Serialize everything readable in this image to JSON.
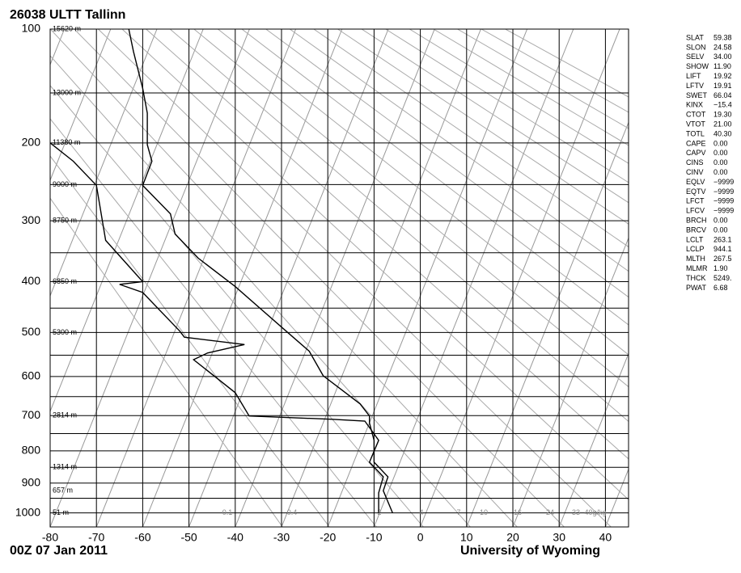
{
  "chart_data": {
    "type": "skewt",
    "title": "26038 ULTT Tallinn",
    "date": "00Z 07 Jan 2011",
    "source": "University of Wyoming",
    "xlim": [
      -80,
      45
    ],
    "xticks": [
      -80,
      -70,
      -60,
      -50,
      -40,
      -30,
      -20,
      -10,
      0,
      10,
      20,
      30,
      40
    ],
    "ylim": [
      100,
      1050
    ],
    "yticks": [
      100,
      200,
      300,
      400,
      500,
      600,
      700,
      800,
      900,
      1000
    ],
    "minor_yticks": [
      150,
      250,
      350,
      450,
      550,
      650,
      750,
      850,
      950
    ],
    "height_labels": [
      {
        "value": 100,
        "label": "15620 m"
      },
      {
        "value": 150,
        "label": "13000 m"
      },
      {
        "value": 200,
        "label": "11380 m"
      },
      {
        "value": 250,
        "label": "9000 m"
      },
      {
        "value": 300,
        "label": "8750 m"
      },
      {
        "value": 400,
        "label": "6850 m"
      },
      {
        "value": 500,
        "label": "5300 m"
      },
      {
        "value": 700,
        "label": "2814 m"
      },
      {
        "value": 850,
        "label": "1314 m"
      },
      {
        "value": 925,
        "label": "657 m"
      },
      {
        "value": 1000,
        "label": "51 m"
      }
    ],
    "mixing_ratio_labels": [
      "0.1",
      "0.4",
      "2",
      "4",
      "7",
      "10",
      "16",
      "24",
      "33",
      "40g/kg"
    ],
    "series": [
      {
        "name": "Temperature",
        "color": "#000000",
        "pressure": [
          1000,
          925,
          880,
          834,
          769,
          720,
          701,
          669,
          598,
          541,
          497,
          409,
          359,
          320,
          290,
          251,
          221,
          202,
          169,
          146,
          116,
          100
        ],
        "values": [
          -6,
          -8,
          -7,
          -10,
          -10,
          -11,
          -11,
          -13,
          -21,
          -24,
          -29,
          -40,
          -48,
          -53,
          -54,
          -60,
          -58,
          -59,
          -59,
          -60,
          -62,
          -63
        ]
      },
      {
        "name": "Dewpoint",
        "color": "#000000",
        "pressure": [
          1000,
          932,
          880,
          834,
          769,
          715,
          710,
          701,
          640,
          560,
          545,
          526,
          510,
          497,
          420,
          405,
          400,
          330,
          251,
          221,
          200
        ],
        "values": [
          -9,
          -9,
          -8,
          -11,
          -9,
          -12,
          -19,
          -37,
          -40,
          -49,
          -46,
          -38,
          -51,
          -52,
          -60,
          -65,
          -60,
          -68,
          -70,
          -75,
          -80
        ]
      }
    ],
    "indices": [
      [
        "SLAT",
        "59.38"
      ],
      [
        "SLON",
        "24.58"
      ],
      [
        "SELV",
        "34.00"
      ],
      [
        "SHOW",
        "11.90"
      ],
      [
        "LIFT",
        "19.92"
      ],
      [
        "LFTV",
        "19.91"
      ],
      [
        "SWET",
        "66.04"
      ],
      [
        "KINX",
        "−15.4"
      ],
      [
        "CTOT",
        "19.30"
      ],
      [
        "VTOT",
        "21.00"
      ],
      [
        "TOTL",
        "40.30"
      ],
      [
        "CAPE",
        "0.00"
      ],
      [
        "CAPV",
        "0.00"
      ],
      [
        "CINS",
        "0.00"
      ],
      [
        "CINV",
        "0.00"
      ],
      [
        "EQLV",
        "−9999"
      ],
      [
        "EQTV",
        "−9999"
      ],
      [
        "LFCT",
        "−9999"
      ],
      [
        "LFCV",
        "−9999"
      ],
      [
        "BRCH",
        "0.00"
      ],
      [
        "BRCV",
        "0.00"
      ],
      [
        "LCLT",
        "263.1"
      ],
      [
        "LCLP",
        "944.1"
      ],
      [
        "MLTH",
        "267.5"
      ],
      [
        "MLMR",
        "1.90"
      ],
      [
        "THCK",
        "5249."
      ],
      [
        "PWAT",
        "6.68"
      ]
    ]
  }
}
